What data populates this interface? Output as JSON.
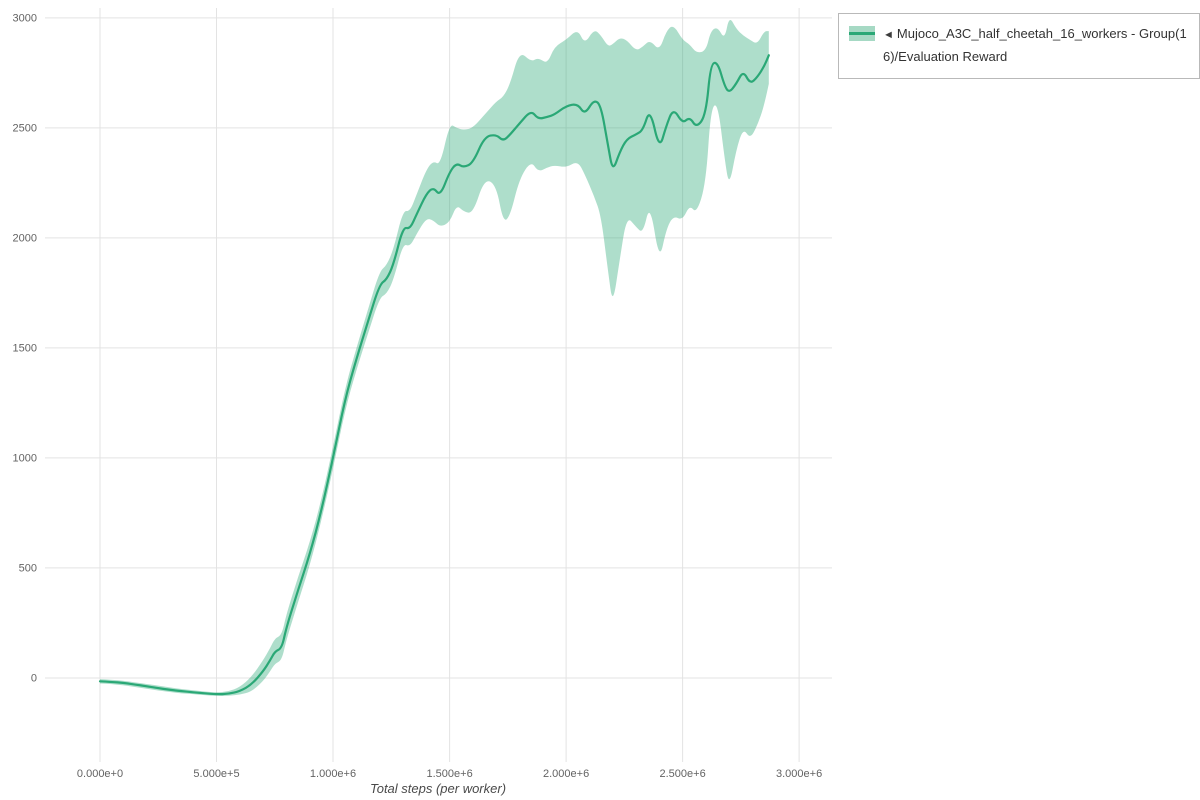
{
  "legend": {
    "marker": "◄"
  },
  "colors": {
    "line": "#2aa876",
    "band": "#2aa876",
    "band_opacity": 0.38,
    "grid": "#e3e3e3",
    "tick_text": "#636363"
  },
  "chart_data": {
    "type": "line",
    "title": "",
    "xlabel": "Total steps (per worker)",
    "ylabel": "",
    "grid": true,
    "legend_position": "top-right-outside",
    "xlim": [
      -236000,
      3141000
    ],
    "ylim": [
      -382,
      3045
    ],
    "x_ticks": [
      {
        "value": 0,
        "label": "0.000e+0"
      },
      {
        "value": 500000,
        "label": "5.000e+5"
      },
      {
        "value": 1000000,
        "label": "1.000e+6"
      },
      {
        "value": 1500000,
        "label": "1.500e+6"
      },
      {
        "value": 2000000,
        "label": "2.000e+6"
      },
      {
        "value": 2500000,
        "label": "2.500e+6"
      },
      {
        "value": 3000000,
        "label": "3.000e+6"
      }
    ],
    "y_ticks": [
      {
        "value": 0,
        "label": "0"
      },
      {
        "value": 500,
        "label": "500"
      },
      {
        "value": 1000,
        "label": "1000"
      },
      {
        "value": 1500,
        "label": "1500"
      },
      {
        "value": 2000,
        "label": "2000"
      },
      {
        "value": 2500,
        "label": "2500"
      },
      {
        "value": 3000,
        "label": "3000"
      }
    ],
    "series": [
      {
        "name": "Mujoco_A3C_half_cheetah_16_workers - Group(16)/Evaluation Reward",
        "x": [
          0,
          50000,
          100000,
          150000,
          200000,
          250000,
          300000,
          350000,
          400000,
          450000,
          500000,
          550000,
          600000,
          650000,
          700000,
          730000,
          750000,
          780000,
          800000,
          850000,
          900000,
          950000,
          1000000,
          1050000,
          1100000,
          1150000,
          1200000,
          1230000,
          1260000,
          1300000,
          1330000,
          1360000,
          1400000,
          1430000,
          1460000,
          1500000,
          1530000,
          1560000,
          1600000,
          1650000,
          1700000,
          1730000,
          1760000,
          1800000,
          1850000,
          1880000,
          1920000,
          1950000,
          2000000,
          2050000,
          2080000,
          2120000,
          2150000,
          2180000,
          2200000,
          2230000,
          2260000,
          2300000,
          2330000,
          2360000,
          2400000,
          2430000,
          2460000,
          2500000,
          2530000,
          2560000,
          2600000,
          2620000,
          2650000,
          2680000,
          2700000,
          2730000,
          2760000,
          2790000,
          2820000,
          2850000,
          2870000
        ],
        "mean": [
          -15,
          -18,
          -22,
          -30,
          -38,
          -46,
          -54,
          -60,
          -65,
          -70,
          -74,
          -73,
          -60,
          -30,
          30,
          80,
          120,
          135,
          230,
          400,
          560,
          760,
          1000,
          1260,
          1450,
          1620,
          1790,
          1810,
          1880,
          2050,
          2040,
          2110,
          2200,
          2230,
          2190,
          2300,
          2340,
          2320,
          2340,
          2460,
          2470,
          2440,
          2470,
          2520,
          2580,
          2540,
          2550,
          2560,
          2600,
          2610,
          2560,
          2630,
          2600,
          2420,
          2300,
          2390,
          2450,
          2470,
          2490,
          2590,
          2400,
          2510,
          2590,
          2520,
          2550,
          2500,
          2560,
          2790,
          2800,
          2690,
          2660,
          2700,
          2760,
          2700,
          2730,
          2780,
          2830
        ],
        "lower": [
          -25,
          -28,
          -33,
          -41,
          -49,
          -57,
          -64,
          -70,
          -74,
          -78,
          -82,
          -82,
          -76,
          -62,
          -15,
          30,
          65,
          80,
          175,
          345,
          510,
          715,
          950,
          1210,
          1400,
          1565,
          1730,
          1745,
          1810,
          1975,
          1960,
          2020,
          2090,
          2080,
          2050,
          2070,
          2150,
          2120,
          2110,
          2270,
          2240,
          2070,
          2100,
          2270,
          2350,
          2300,
          2320,
          2330,
          2320,
          2350,
          2290,
          2190,
          2100,
          1850,
          1690,
          1900,
          2100,
          2050,
          2020,
          2160,
          1890,
          2040,
          2100,
          2080,
          2150,
          2110,
          2250,
          2580,
          2620,
          2360,
          2230,
          2400,
          2500,
          2450,
          2510,
          2600,
          2700
        ],
        "upper": [
          -5,
          -8,
          -12,
          -20,
          -27,
          -35,
          -43,
          -50,
          -56,
          -62,
          -66,
          -62,
          -42,
          5,
          80,
          135,
          180,
          195,
          290,
          460,
          615,
          810,
          1050,
          1310,
          1500,
          1675,
          1850,
          1875,
          1950,
          2125,
          2120,
          2200,
          2310,
          2350,
          2330,
          2520,
          2500,
          2490,
          2500,
          2560,
          2620,
          2640,
          2700,
          2850,
          2800,
          2820,
          2790,
          2870,
          2900,
          2950,
          2880,
          2950,
          2920,
          2870,
          2880,
          2910,
          2900,
          2850,
          2870,
          2900,
          2850,
          2940,
          2970,
          2900,
          2880,
          2840,
          2850,
          2940,
          2960,
          2900,
          3010,
          2950,
          2920,
          2900,
          2880,
          2940,
          2940
        ]
      }
    ]
  }
}
